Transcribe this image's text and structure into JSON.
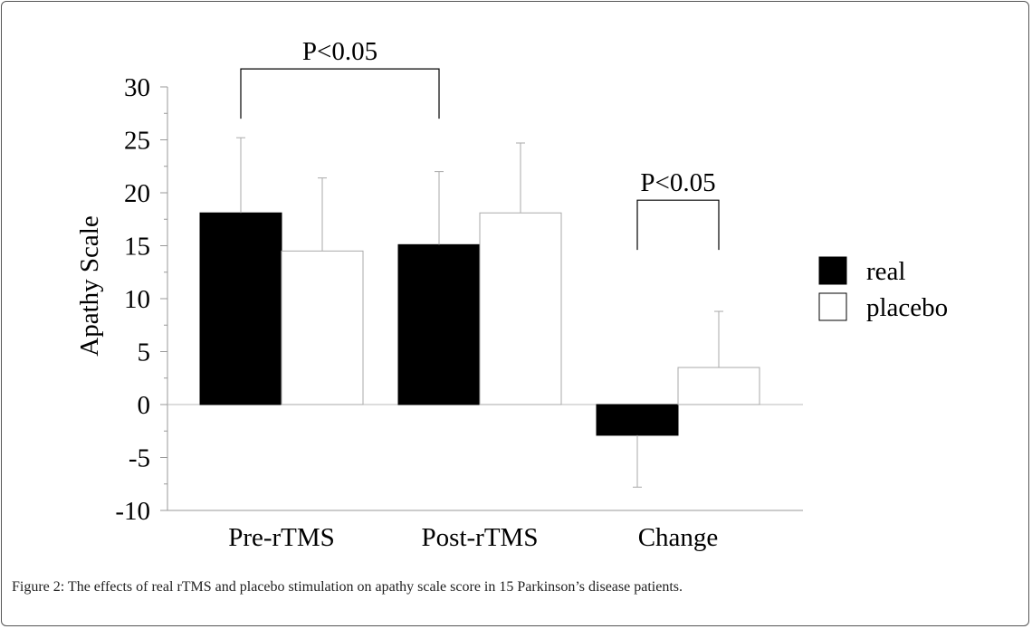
{
  "chart_data": {
    "type": "bar",
    "categories": [
      "Pre-rTMS",
      "Post-rTMS",
      "Change"
    ],
    "series": [
      {
        "name": "real",
        "values": [
          18.1,
          15.1,
          -2.9
        ],
        "errors": [
          7.1,
          6.9,
          4.9
        ],
        "error_direction": [
          1,
          1,
          -1
        ],
        "fill": "#000000"
      },
      {
        "name": "placebo",
        "values": [
          14.5,
          18.1,
          3.5
        ],
        "errors": [
          6.9,
          6.6,
          5.3
        ],
        "error_direction": [
          1,
          1,
          1
        ],
        "fill": "#ffffff"
      }
    ],
    "ylabel": "Apathy Scale",
    "ylim": [
      -10,
      30
    ],
    "yticks": [
      "30",
      "25",
      "20",
      "15",
      "10",
      "5",
      "0",
      "-5",
      "-10"
    ],
    "yticks_values": [
      30,
      25,
      20,
      15,
      10,
      5,
      0,
      -5,
      -10
    ],
    "legend_position": "right",
    "annotations": [
      {
        "label": "P<0.05",
        "from_category": "Pre-rTMS",
        "from_series": "real",
        "to_category": "Post-rTMS",
        "to_series": "real",
        "bracket_top": 31.7,
        "arm_bottom": 27.0
      },
      {
        "label": "P<0.05",
        "from_category": "Change",
        "from_series": "real",
        "to_category": "Change",
        "to_series": "placebo",
        "bracket_top": 19.3,
        "arm_bottom": 14.6
      }
    ],
    "grid": false
  },
  "caption": "Figure 2: The effects of real rTMS and placebo stimulation on apathy scale score in 15 Parkinson’s disease patients."
}
